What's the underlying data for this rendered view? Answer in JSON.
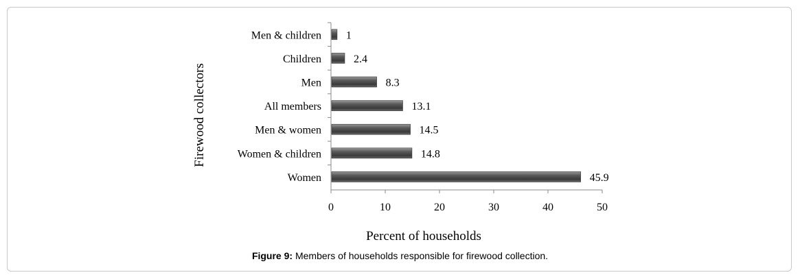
{
  "chart_data": {
    "type": "bar",
    "orientation": "horizontal",
    "categories": [
      "Men & children",
      "Children",
      "Men",
      "All members",
      "Men & women",
      "Women & children",
      "Women"
    ],
    "values": [
      1,
      2.4,
      8.3,
      13.1,
      14.5,
      14.8,
      45.9
    ],
    "data_labels": [
      "1",
      "2.4",
      "8.3",
      "13.1",
      "14.5",
      "14.8",
      "45.9"
    ],
    "xlabel": "Percent of households",
    "ylabel": "Firewood collectors",
    "xlim": [
      0,
      50
    ],
    "xticks": [
      "0",
      "10",
      "20",
      "30",
      "40",
      "50"
    ],
    "grid": false,
    "bar_color": "#555555"
  },
  "caption": {
    "label": "Figure 9:",
    "text": " Members of households responsible for firewood collection."
  }
}
